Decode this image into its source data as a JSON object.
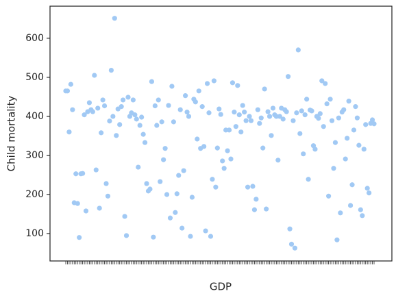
{
  "chart_data": {
    "type": "scatter",
    "xlabel": "GDP",
    "ylabel": "Child mortality",
    "categories": [
      null,
      null,
      null,
      null,
      null,
      null,
      null,
      null,
      null,
      null,
      null,
      null,
      null,
      null,
      null,
      null,
      null,
      null,
      null,
      null,
      null,
      null,
      null,
      null,
      null,
      null,
      null,
      null,
      null,
      null,
      null,
      null,
      null,
      null,
      null,
      null,
      null,
      null,
      null,
      null,
      null,
      null,
      null,
      null,
      null,
      null,
      null,
      null,
      null,
      null,
      null,
      null,
      null,
      null,
      null,
      null,
      null,
      null,
      null,
      null,
      null,
      null,
      null,
      null,
      null,
      null,
      null,
      null,
      null,
      null,
      null,
      null,
      null,
      null,
      null,
      null,
      null,
      null,
      null,
      null,
      null,
      null,
      null,
      null,
      null,
      null,
      null,
      null,
      null,
      null,
      null,
      null,
      null,
      null,
      null,
      null,
      null,
      null,
      null,
      null,
      null,
      null,
      null,
      null,
      null,
      null,
      null,
      null,
      null,
      null,
      null,
      null,
      null,
      null,
      null,
      null,
      null,
      null,
      null,
      null,
      null,
      null,
      null,
      null,
      null,
      null,
      null,
      null,
      null,
      null,
      null,
      null,
      null,
      null,
      null,
      null,
      null,
      null,
      null,
      null,
      null,
      null,
      null,
      null,
      null,
      null,
      null,
      null,
      null,
      null,
      null,
      null,
      null,
      null,
      null,
      null,
      null,
      null,
      null,
      null,
      null,
      null,
      null,
      null,
      null,
      null,
      null,
      null,
      null,
      null,
      null,
      null,
      null,
      null,
      null,
      null,
      null,
      null,
      null,
      null,
      null,
      null,
      null,
      null
    ],
    "values": [
      465,
      465,
      360,
      482,
      417,
      179,
      253,
      177,
      90,
      253,
      254,
      404,
      158,
      412,
      435,
      417,
      412,
      505,
      263,
      421,
      165,
      358,
      442,
      427,
      228,
      196,
      388,
      518,
      400,
      651,
      351,
      419,
      379,
      425,
      442,
      144,
      95,
      449,
      400,
      409,
      442,
      404,
      393,
      270,
      377,
      398,
      354,
      333,
      228,
      209,
      214,
      489,
      91,
      427,
      377,
      442,
      233,
      386,
      289,
      318,
      200,
      428,
      140,
      477,
      386,
      154,
      202,
      249,
      417,
      114,
      261,
      453,
      411,
      400,
      93,
      193,
      444,
      437,
      342,
      465,
      318,
      425,
      323,
      107,
      484,
      409,
      93,
      239,
      491,
      219,
      319,
      419,
      405,
      286,
      267,
      365,
      312,
      365,
      291,
      486,
      411,
      374,
      479,
      404,
      360,
      428,
      411,
      389,
      219,
      400,
      389,
      221,
      161,
      188,
      417,
      382,
      396,
      319,
      470,
      163,
      412,
      400,
      351,
      421,
      404,
      400,
      288,
      400,
      421,
      393,
      417,
      412,
      502,
      112,
      73,
      389,
      63,
      409,
      570,
      356,
      414,
      304,
      404,
      444,
      239,
      416,
      414,
      325,
      316,
      400,
      395,
      407,
      491,
      374,
      484,
      432,
      196,
      444,
      389,
      267,
      333,
      84,
      396,
      153,
      411,
      417,
      291,
      344,
      439,
      172,
      225,
      365,
      425,
      396,
      326,
      161,
      146,
      316,
      379,
      216,
      204,
      382,
      391,
      381
    ],
    "color": "#a1c9f4",
    "ylim": [
      30,
      682
    ],
    "yticks": [
      100,
      200,
      300,
      400,
      500,
      600
    ],
    "grid": false
  }
}
